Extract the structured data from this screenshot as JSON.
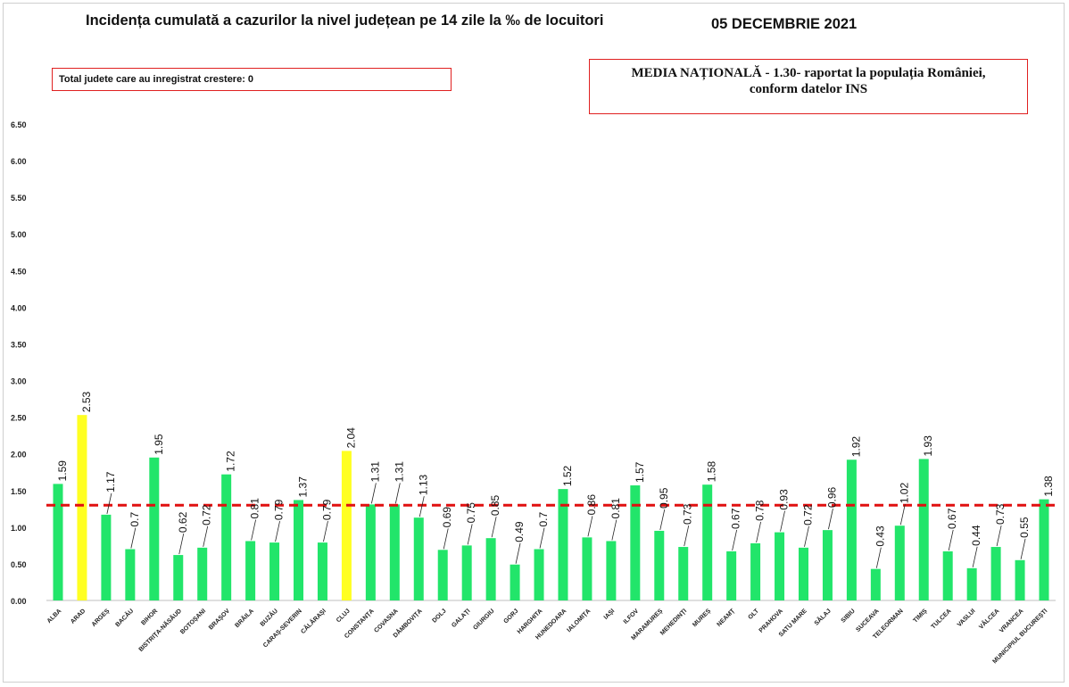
{
  "title": "Incidența cumulată a cazurilor la nivel județean pe 14 zile la ‰ de locuitori",
  "date": "05 DECEMBRIE 2021",
  "left_box_text": "Total judete care au inregistrat crestere: 0",
  "right_box_line1": "MEDIA NAȚIONALĂ - 1.30-  raportat la populația României,",
  "right_box_line2": "conform datelor INS",
  "colors": {
    "normal": "#22e56a",
    "highlight": "#ffff22",
    "average_line": "#e01010"
  },
  "chart_data": {
    "type": "bar",
    "title": "Incidența cumulată a cazurilor la nivel județean pe 14 zile la ‰ de locuitori",
    "xlabel": "",
    "ylabel": "",
    "ylim": [
      0,
      6.5
    ],
    "yticks": [
      "0.00",
      "0.50",
      "1.00",
      "1.50",
      "2.00",
      "2.50",
      "3.00",
      "3.50",
      "4.00",
      "4.50",
      "5.00",
      "5.50",
      "6.00",
      "6.50"
    ],
    "grid": false,
    "average": 1.3,
    "categories": [
      "ALBA",
      "ARAD",
      "ARGEȘ",
      "BACĂU",
      "BIHOR",
      "BISTRIȚA-NĂSĂUD",
      "BOTOȘANI",
      "BRAȘOV",
      "BRĂILA",
      "BUZĂU",
      "CARAȘ-SEVERIN",
      "CĂLĂRAȘI",
      "CLUJ",
      "CONSTANȚA",
      "COVASNA",
      "DÂMBOVIȚA",
      "DOLJ",
      "GALAȚI",
      "GIURGIU",
      "GORJ",
      "HARGHITA",
      "HUNEDOARA",
      "IALOMIȚA",
      "IAȘI",
      "ILFOV",
      "MARAMUREȘ",
      "MEHEDINȚI",
      "MUREȘ",
      "NEAMȚ",
      "OLT",
      "PRAHOVA",
      "SATU MARE",
      "SĂLAJ",
      "SIBIU",
      "SUCEAVA",
      "TELEORMAN",
      "TIMIȘ",
      "TULCEA",
      "VASLUI",
      "VÂLCEA",
      "VRANCEA",
      "MUNICIPIUL BUCUREȘTI"
    ],
    "values": [
      1.59,
      2.53,
      1.17,
      0.7,
      1.95,
      0.62,
      0.72,
      1.72,
      0.81,
      0.79,
      1.37,
      0.79,
      2.04,
      1.31,
      1.31,
      1.13,
      0.69,
      0.75,
      0.85,
      0.49,
      0.7,
      1.52,
      0.86,
      0.81,
      1.57,
      0.95,
      0.73,
      1.58,
      0.67,
      0.78,
      0.93,
      0.72,
      0.96,
      1.92,
      0.43,
      1.02,
      1.93,
      0.67,
      0.44,
      0.73,
      0.55,
      1.38
    ],
    "value_labels": [
      "1.59",
      "2.53",
      "1.17",
      "0.7",
      "1.95",
      "0.62",
      "0.72",
      "1.72",
      "0.81",
      "0.79",
      "1.37",
      "0.79",
      "2.04",
      "1.31",
      "1.31",
      "1.13",
      "0.69",
      "0.75",
      "0.85",
      "0.49",
      "0.7",
      "1.52",
      "0.86",
      "0.81",
      "1.57",
      "0.95",
      "0.73",
      "1.58",
      "0.67",
      "0.78",
      "0.93",
      "0.72",
      "0.96",
      "1.92",
      "0.43",
      "1.02",
      "1.93",
      "0.67",
      "0.44",
      "0.73",
      "0.55",
      "1.38"
    ],
    "highlighted": [
      "ARAD",
      "CLUJ"
    ]
  }
}
